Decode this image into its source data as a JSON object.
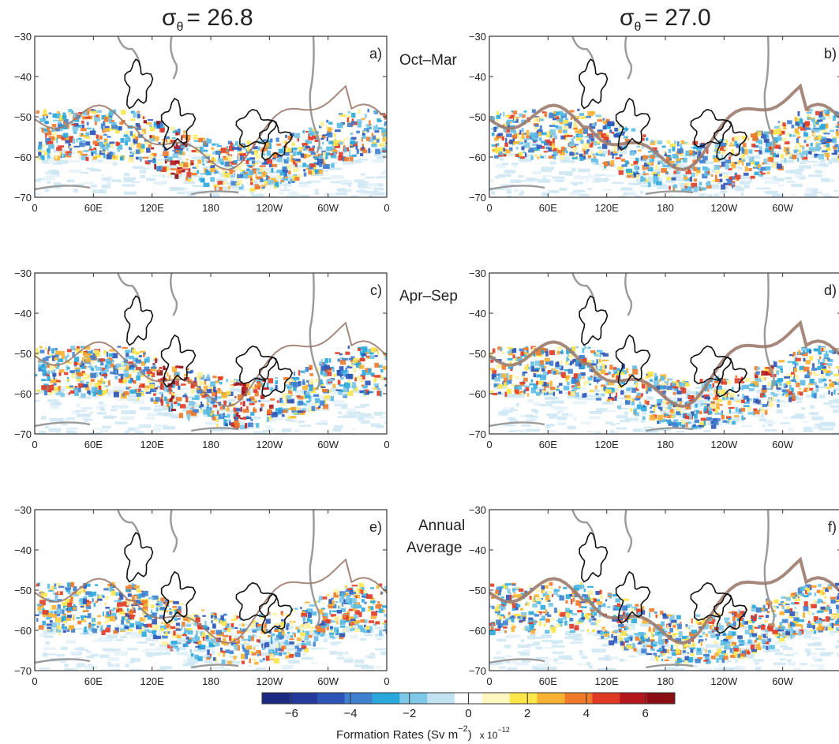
{
  "chart_data": {
    "type": "heatmap",
    "columns": [
      {
        "label": "σ",
        "subscript": "θ",
        "value_text": "= 26.8"
      },
      {
        "label": "σ",
        "subscript": "θ",
        "value_text": "= 27.0"
      }
    ],
    "rows": [
      "Oct–Mar",
      "Apr–Sep",
      "Annual",
      "Average"
    ],
    "panels": [
      {
        "label": "a)",
        "row": 0,
        "col": 0
      },
      {
        "label": "b)",
        "row": 0,
        "col": 1
      },
      {
        "label": "c)",
        "row": 1,
        "col": 0
      },
      {
        "label": "d)",
        "row": 1,
        "col": 1
      },
      {
        "label": "e)",
        "row": 2,
        "col": 0
      },
      {
        "label": "f)",
        "row": 2,
        "col": 1
      }
    ],
    "x_ticks": [
      "0",
      "60E",
      "120E",
      "180",
      "120W",
      "60W",
      "0"
    ],
    "y_ticks": [
      "−30",
      "−40",
      "−50",
      "−60",
      "−70"
    ],
    "ylim": [
      -70,
      -30
    ],
    "colorbar": {
      "ticks": [
        "−6",
        "−4",
        "−2",
        "0",
        "2",
        "4",
        "6"
      ],
      "range": [
        -7,
        7
      ],
      "colors": [
        "#1b2a80",
        "#243a9c",
        "#2d55b8",
        "#3f7fcf",
        "#2aa8dc",
        "#7fc8e8",
        "#c2e2f2",
        "#ffffff",
        "#fff7c0",
        "#fde64a",
        "#f9b233",
        "#f07a2a",
        "#e03a25",
        "#b4161b",
        "#8a0e14"
      ],
      "label": "Formation Rates (Sv m",
      "label_sup": "−2",
      "label_end": ")",
      "scale_text": "x 10",
      "scale_sup": "−12"
    }
  }
}
